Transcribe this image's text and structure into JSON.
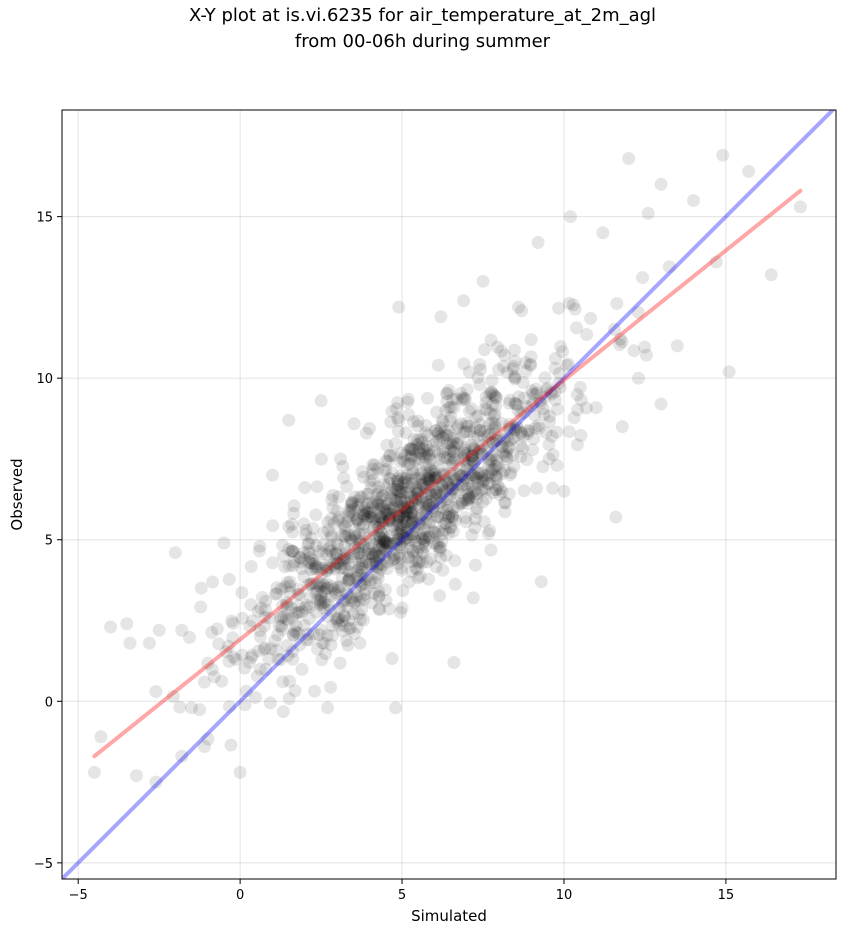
{
  "chart_data": {
    "type": "scatter",
    "title_line1": "X-Y plot at is.vi.6235 for air_temperature_at_2m_agl",
    "title_line2": "from 00-06h during summer",
    "xlabel": "Simulated",
    "ylabel": "Observed",
    "xlim": [
      -5.5,
      18.4
    ],
    "ylim": [
      -5.5,
      18.3
    ],
    "xticks": [
      -5,
      0,
      5,
      10,
      15
    ],
    "yticks": [
      -5,
      0,
      5,
      10,
      15
    ],
    "xtick_labels": [
      "−5",
      "0",
      "5",
      "10",
      "15"
    ],
    "ytick_labels": [
      "−5",
      "0",
      "5",
      "10",
      "15"
    ],
    "grid": true,
    "point_color": "#000000",
    "point_alpha": 0.1,
    "identity_line": {
      "color": "#0000ff",
      "alpha": 0.35,
      "x": [
        -5.5,
        18.4
      ],
      "y": [
        -5.5,
        18.4
      ]
    },
    "fit_line": {
      "color": "#ff0000",
      "alpha": 0.35,
      "x": [
        -4.5,
        17.3
      ],
      "y": [
        -1.7,
        15.8
      ]
    },
    "scatter": {
      "center": {
        "x": 5.2,
        "y": 6.0
      },
      "n_core": 1300,
      "outliers": [
        [
          -4.5,
          -2.2
        ],
        [
          -4.0,
          2.3
        ],
        [
          -3.5,
          2.4
        ],
        [
          -3.4,
          1.8
        ],
        [
          -3.2,
          -2.3
        ],
        [
          -2.8,
          1.8
        ],
        [
          -2.5,
          2.2
        ],
        [
          -2.6,
          0.3
        ],
        [
          -2.0,
          4.6
        ],
        [
          -1.8,
          2.2
        ],
        [
          -1.5,
          -0.2
        ],
        [
          -1.2,
          3.5
        ],
        [
          0.0,
          -2.2
        ],
        [
          -4.3,
          -1.1
        ],
        [
          -2.6,
          -2.5
        ],
        [
          -1.8,
          -1.7
        ],
        [
          -1.1,
          -1.4
        ],
        [
          -0.5,
          4.9
        ],
        [
          1.5,
          8.7
        ],
        [
          2.5,
          9.3
        ],
        [
          3.9,
          8.3
        ],
        [
          4.9,
          12.2
        ],
        [
          6.2,
          11.9
        ],
        [
          7.5,
          13.0
        ],
        [
          9.2,
          14.2
        ],
        [
          10.2,
          15.0
        ],
        [
          11.2,
          14.5
        ],
        [
          12.0,
          16.8
        ],
        [
          13.0,
          16.0
        ],
        [
          14.0,
          15.5
        ],
        [
          14.9,
          16.9
        ],
        [
          15.7,
          16.4
        ],
        [
          16.4,
          13.2
        ],
        [
          17.3,
          15.3
        ],
        [
          15.1,
          10.2
        ],
        [
          13.0,
          9.2
        ],
        [
          12.3,
          10.0
        ],
        [
          11.8,
          8.5
        ],
        [
          10.0,
          6.5
        ],
        [
          11.6,
          5.7
        ],
        [
          9.3,
          3.7
        ],
        [
          7.2,
          3.2
        ],
        [
          6.6,
          1.2
        ],
        [
          4.8,
          -0.2
        ],
        [
          3.7,
          1.8
        ],
        [
          2.7,
          -0.2
        ],
        [
          14.7,
          13.6
        ],
        [
          13.5,
          11.0
        ],
        [
          12.6,
          15.1
        ],
        [
          8.6,
          12.2
        ],
        [
          6.9,
          12.4
        ],
        [
          3.1,
          7.5
        ],
        [
          1.0,
          7.0
        ]
      ]
    }
  }
}
